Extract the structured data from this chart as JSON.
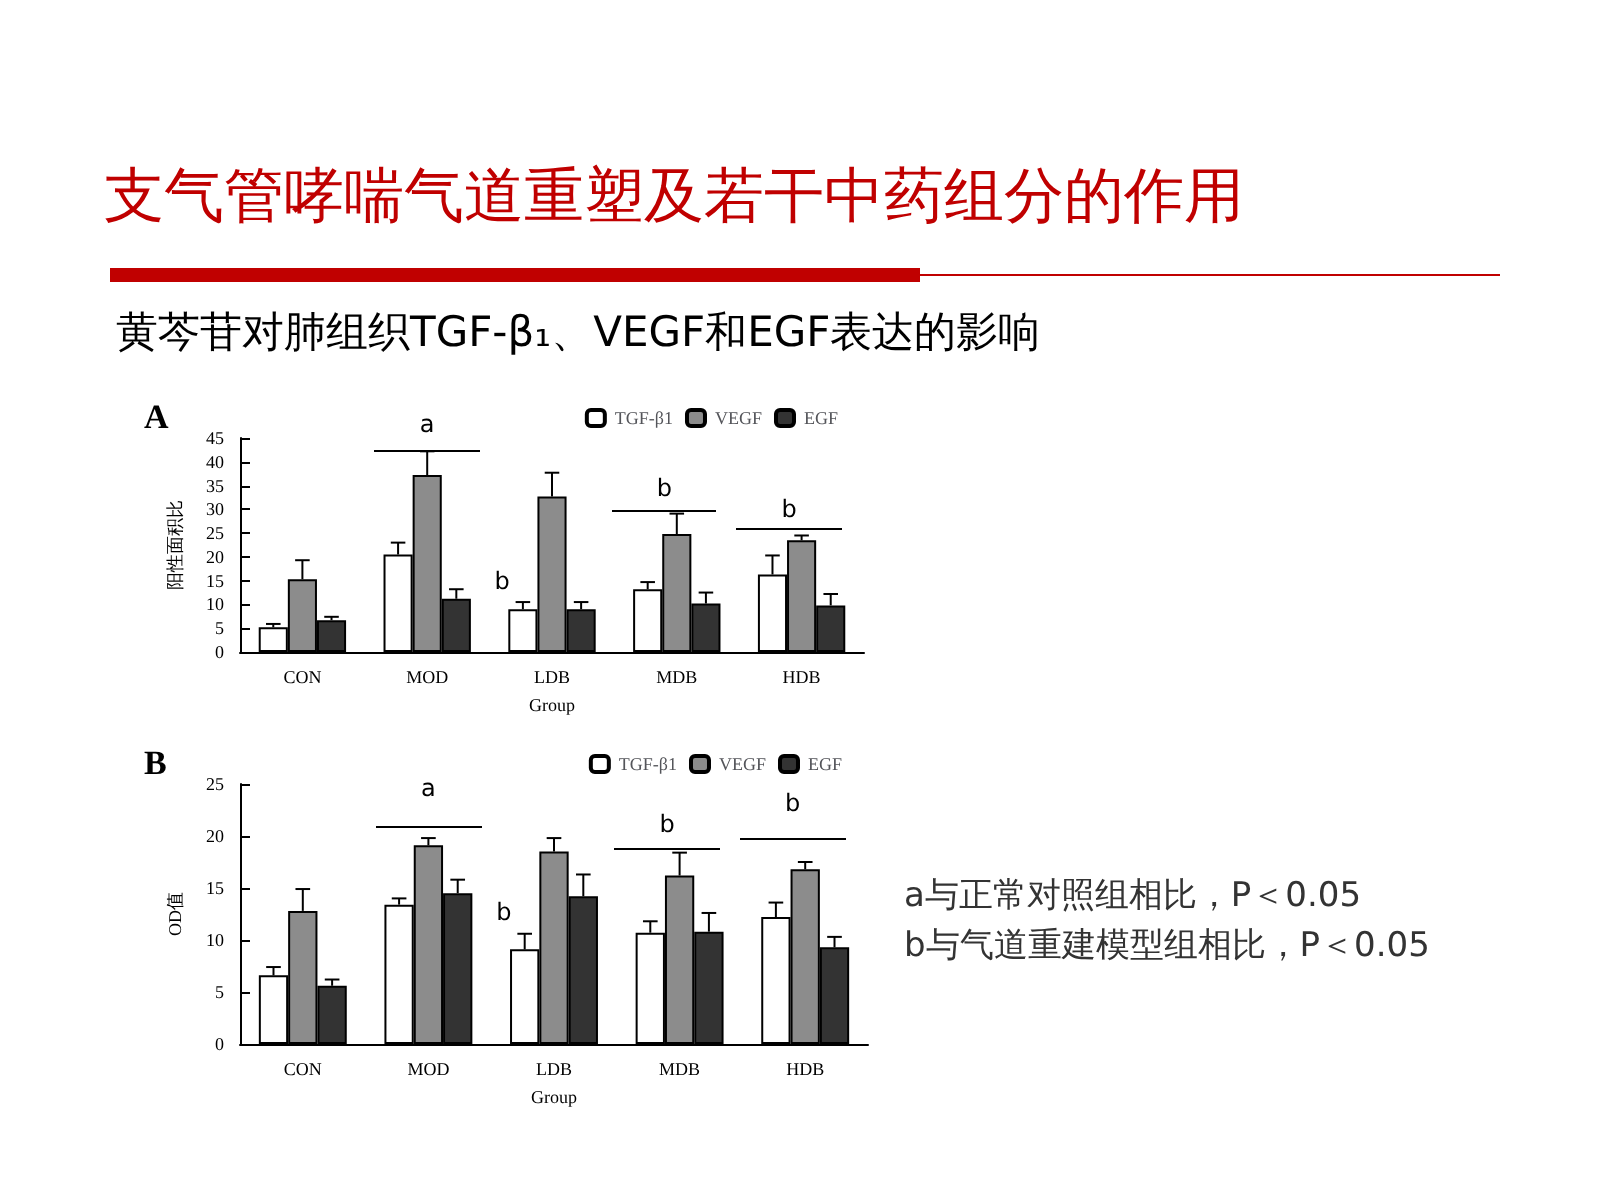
{
  "chart_data": [
    {
      "type": "bar",
      "title": "支气管哮喘气道重塑及若干中药组分的作用",
      "subtitle": "黄芩苷对肺组织TGF-β₁、VEGF和EGF表达的影响",
      "xlabel": "Group",
      "ylabel": "阳性面积比",
      "categories": [
        "CON",
        "MOD",
        "LDB",
        "MDB",
        "HDB"
      ],
      "ylim": [
        0,
        45
      ],
      "yticks": [
        0,
        5,
        10,
        15,
        20,
        25,
        30,
        35,
        40,
        45
      ],
      "grid": false,
      "legend": "top right",
      "series": [
        {
          "name": "TGF-β1",
          "color": "#ffffff",
          "values": [
            5.2,
            20.5,
            9,
            13.2,
            16.3
          ],
          "errors": [
            [
              5.2,
              5.9
            ],
            [
              20.5,
              23
            ],
            [
              9,
              10.5
            ],
            [
              13.2,
              14.7
            ],
            [
              16.3,
              20.3
            ]
          ]
        },
        {
          "name": "VEGF",
          "color": "#8c8c8c",
          "values": [
            15.3,
            37.2,
            32.7,
            24.8,
            23.5
          ],
          "errors": [
            [
              15.3,
              19.3
            ],
            [
              37.2,
              42.2
            ],
            [
              32.7,
              37.7
            ],
            [
              24.8,
              29.1
            ],
            [
              23.5,
              24.5
            ]
          ]
        },
        {
          "name": "EGF",
          "color": "#333333",
          "values": [
            6.7,
            11.2,
            9,
            10.2,
            9.8
          ],
          "errors": [
            [
              6.7,
              7.4
            ],
            [
              11.2,
              13.2
            ],
            [
              9,
              10.5
            ],
            [
              10.2,
              12.5
            ],
            [
              9.8,
              12.2
            ]
          ]
        }
      ],
      "annotations": [
        "A",
        "a",
        "b",
        "b",
        "b"
      ]
    },
    {
      "type": "bar",
      "xlabel": "Group",
      "ylabel": "OD值",
      "categories": [
        "CON",
        "MOD",
        "LDB",
        "MDB",
        "HDB"
      ],
      "ylim": [
        0,
        25
      ],
      "yticks": [
        0,
        5,
        10,
        15,
        20,
        25
      ],
      "grid": false,
      "legend": "top right",
      "series": [
        {
          "name": "TGF-β1",
          "color": "#ffffff",
          "values": [
            6.6,
            13.4,
            9.1,
            10.7,
            12.2
          ],
          "errors": [
            [
              6.6,
              7.4
            ],
            [
              13.4,
              14
            ],
            [
              9.1,
              10.6
            ],
            [
              10.7,
              11.8
            ],
            [
              12.2,
              13.6
            ]
          ]
        },
        {
          "name": "VEGF",
          "color": "#8c8c8c",
          "values": [
            12.8,
            19.1,
            18.5,
            16.2,
            16.8
          ],
          "errors": [
            [
              12.8,
              14.9
            ],
            [
              19.1,
              19.8
            ],
            [
              18.5,
              19.8
            ],
            [
              16.2,
              18.4
            ],
            [
              16.8,
              17.5
            ]
          ]
        },
        {
          "name": "EGF",
          "color": "#333333",
          "values": [
            5.6,
            14.5,
            14.2,
            10.8,
            9.3
          ],
          "errors": [
            [
              5.6,
              6.2
            ],
            [
              14.5,
              15.8
            ],
            [
              14.2,
              16.3
            ],
            [
              10.8,
              12.6
            ],
            [
              9.3,
              10.3
            ]
          ]
        }
      ],
      "annotations": [
        "B",
        "a",
        "b",
        "b",
        "b",
        "a与正常对照组相比，P＜0.05",
        "b与气道重建模型组相比，P＜0.05"
      ]
    }
  ]
}
